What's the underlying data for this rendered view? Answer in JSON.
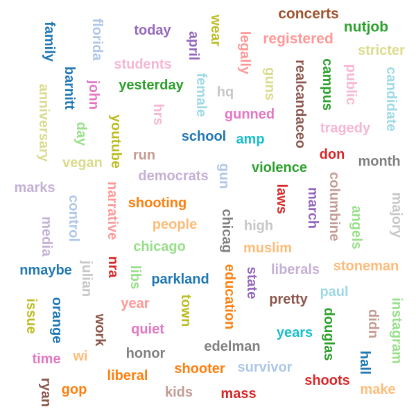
{
  "words": [
    {
      "text": "concerts",
      "color": "#a0522d"
    },
    {
      "text": "nutjob",
      "color": "#2ca02c"
    },
    {
      "text": "registered",
      "color": "#ff9896"
    },
    {
      "text": "today",
      "color": "#9467bd"
    },
    {
      "text": "wear",
      "color": "#bcbd22"
    },
    {
      "text": "legally",
      "color": "#ff9896"
    },
    {
      "text": "stricter",
      "color": "#dbdb8d"
    },
    {
      "text": "family",
      "color": "#1f77b4"
    },
    {
      "text": "florida",
      "color": "#aec7e8"
    },
    {
      "text": "april",
      "color": "#9467bd"
    },
    {
      "text": "students",
      "color": "#f7b6d2"
    },
    {
      "text": "realcandaceo",
      "color": "#8c564b"
    },
    {
      "text": "campus",
      "color": "#2ca02c"
    },
    {
      "text": "public",
      "color": "#f7b6d2"
    },
    {
      "text": "candidate",
      "color": "#9edae5"
    },
    {
      "text": "barnitt",
      "color": "#1f77b4"
    },
    {
      "text": "john",
      "color": "#e377c2"
    },
    {
      "text": "yesterday",
      "color": "#2ca02c"
    },
    {
      "text": "female",
      "color": "#9edae5"
    },
    {
      "text": "hq",
      "color": "#c7c7c7"
    },
    {
      "text": "guns",
      "color": "#dbdb8d"
    },
    {
      "text": "anniversary",
      "color": "#dbdb8d"
    },
    {
      "text": "hrs",
      "color": "#f7b6d2"
    },
    {
      "text": "gunned",
      "color": "#e377c2"
    },
    {
      "text": "tragedy",
      "color": "#f7b6d2"
    },
    {
      "text": "day",
      "color": "#98df8a"
    },
    {
      "text": "youtube",
      "color": "#bcbd22"
    },
    {
      "text": "school",
      "color": "#1f77b4"
    },
    {
      "text": "amp",
      "color": "#17becf"
    },
    {
      "text": "run",
      "color": "#c49c94"
    },
    {
      "text": "don",
      "color": "#d62728"
    },
    {
      "text": "month",
      "color": "#7f7f7f"
    },
    {
      "text": "vegan",
      "color": "#dbdb8d"
    },
    {
      "text": "democrats",
      "color": "#c5b0d5"
    },
    {
      "text": "gun",
      "color": "#aec7e8"
    },
    {
      "text": "violence",
      "color": "#2ca02c"
    },
    {
      "text": "laws",
      "color": "#d62728"
    },
    {
      "text": "march",
      "color": "#9467bd"
    },
    {
      "text": "columbine",
      "color": "#c49c94"
    },
    {
      "text": "marks",
      "color": "#c5b0d5"
    },
    {
      "text": "narrative",
      "color": "#ff9896"
    },
    {
      "text": "control",
      "color": "#aec7e8"
    },
    {
      "text": "shooting",
      "color": "#ff7f0e"
    },
    {
      "text": "majory",
      "color": "#c7c7c7"
    },
    {
      "text": "angels",
      "color": "#98df8a"
    },
    {
      "text": "media",
      "color": "#c5b0d5"
    },
    {
      "text": "chicag",
      "color": "#7f7f7f"
    },
    {
      "text": "people",
      "color": "#ffbb78"
    },
    {
      "text": "high",
      "color": "#c7c7c7"
    },
    {
      "text": "chicago",
      "color": "#98df8a"
    },
    {
      "text": "muslim",
      "color": "#ffbb78"
    },
    {
      "text": "julian",
      "color": "#c7c7c7"
    },
    {
      "text": "nra",
      "color": "#d62728"
    },
    {
      "text": "nmaybe",
      "color": "#1f77b4"
    },
    {
      "text": "libs",
      "color": "#98df8a"
    },
    {
      "text": "liberals",
      "color": "#c5b0d5"
    },
    {
      "text": "stoneman",
      "color": "#ffbb78"
    },
    {
      "text": "parkland",
      "color": "#1f77b4"
    },
    {
      "text": "education",
      "color": "#ff7f0e"
    },
    {
      "text": "state",
      "color": "#9467bd"
    },
    {
      "text": "paul",
      "color": "#9edae5"
    },
    {
      "text": "issue",
      "color": "#bcbd22"
    },
    {
      "text": "orange",
      "color": "#1f77b4"
    },
    {
      "text": "year",
      "color": "#ff9896"
    },
    {
      "text": "town",
      "color": "#bcbd22"
    },
    {
      "text": "pretty",
      "color": "#8c564b"
    },
    {
      "text": "instagram",
      "color": "#98df8a"
    },
    {
      "text": "didn",
      "color": "#c49c94"
    },
    {
      "text": "douglas",
      "color": "#2ca02c"
    },
    {
      "text": "work",
      "color": "#8c564b"
    },
    {
      "text": "quiet",
      "color": "#e377c2"
    },
    {
      "text": "years",
      "color": "#17becf"
    },
    {
      "text": "time",
      "color": "#e377c2"
    },
    {
      "text": "wi",
      "color": "#ffbb78"
    },
    {
      "text": "honor",
      "color": "#7f7f7f"
    },
    {
      "text": "edelman",
      "color": "#7f7f7f"
    },
    {
      "text": "hall",
      "color": "#1f77b4"
    },
    {
      "text": "shooter",
      "color": "#ff7f0e"
    },
    {
      "text": "survivor",
      "color": "#aec7e8"
    },
    {
      "text": "liberal",
      "color": "#ff7f0e"
    },
    {
      "text": "shoots",
      "color": "#d62728"
    },
    {
      "text": "ryan",
      "color": "#8c564b"
    },
    {
      "text": "gop",
      "color": "#ff7f0e"
    },
    {
      "text": "kids",
      "color": "#c49c94"
    },
    {
      "text": "mass",
      "color": "#d62728"
    },
    {
      "text": "make",
      "color": "#ffbb78"
    }
  ]
}
